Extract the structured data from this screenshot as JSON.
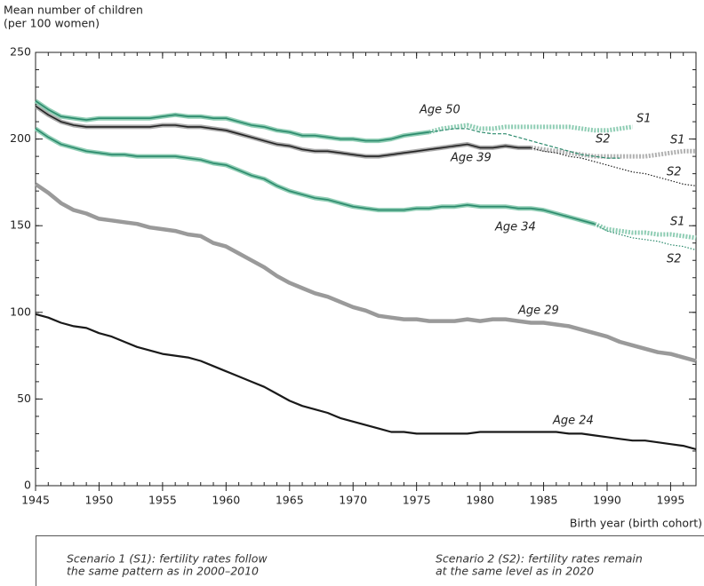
{
  "chart_data": {
    "type": "line",
    "y_label": [
      "Mean number of children",
      "(per 100 women)"
    ],
    "x_label": "Birth year (birth cohort)",
    "xlim": [
      1945,
      1997
    ],
    "xticks": [
      1945,
      1950,
      1955,
      1960,
      1965,
      1970,
      1975,
      1980,
      1985,
      1990,
      1995
    ],
    "ylim": [
      0,
      250
    ],
    "yticks": [
      0,
      50,
      100,
      150,
      200,
      250
    ],
    "x": [
      1945,
      1946,
      1947,
      1948,
      1949,
      1950,
      1951,
      1952,
      1953,
      1954,
      1955,
      1956,
      1957,
      1958,
      1959,
      1960,
      1961,
      1962,
      1963,
      1964,
      1965,
      1966,
      1967,
      1968,
      1969,
      1970,
      1971,
      1972,
      1973,
      1974,
      1975,
      1976,
      1977,
      1978,
      1979,
      1980,
      1981,
      1982,
      1983,
      1984,
      1985,
      1986,
      1987,
      1988,
      1989,
      1990,
      1991,
      1992,
      1993,
      1994,
      1995,
      1996,
      1997
    ],
    "series": [
      {
        "name": "Age 50",
        "color": "#2b8a6c",
        "shade_color": "#8fcdb4",
        "values": [
          222,
          217,
          213,
          212,
          211,
          212,
          212,
          212,
          212,
          212,
          213,
          214,
          213,
          213,
          212,
          212,
          210,
          208,
          207,
          205,
          204,
          202,
          202,
          201,
          200,
          200,
          199,
          199,
          200,
          202,
          203,
          204,
          null,
          null,
          null,
          null,
          null,
          null,
          null,
          null,
          null,
          null,
          null,
          null,
          null,
          null,
          null,
          null,
          null,
          null,
          null,
          null,
          null
        ],
        "projections": [
          {
            "name": "S1",
            "color": "#8fcdb4",
            "values": [
              null,
              null,
              null,
              null,
              null,
              null,
              null,
              null,
              null,
              null,
              null,
              null,
              null,
              null,
              null,
              null,
              null,
              null,
              null,
              null,
              null,
              null,
              null,
              null,
              null,
              null,
              null,
              null,
              null,
              null,
              null,
              204,
              206,
              207,
              208,
              206,
              206,
              207,
              207,
              207,
              207,
              207,
              207,
              206,
              205,
              205,
              206,
              207,
              null,
              null,
              null,
              null,
              null
            ]
          },
          {
            "name": "S2",
            "color": "#2b8a6c",
            "values": [
              null,
              null,
              null,
              null,
              null,
              null,
              null,
              null,
              null,
              null,
              null,
              null,
              null,
              null,
              null,
              null,
              null,
              null,
              null,
              null,
              null,
              null,
              null,
              null,
              null,
              null,
              null,
              null,
              null,
              null,
              null,
              204,
              205,
              206,
              206,
              204,
              203,
              203,
              201,
              199,
              197,
              195,
              193,
              191,
              190,
              189,
              189,
              null,
              null,
              null,
              null,
              null,
              null
            ]
          }
        ]
      },
      {
        "name": "Age 39",
        "color": "#222222",
        "shade_color": "#aaaaaa",
        "values": [
          219,
          214,
          210,
          208,
          207,
          207,
          207,
          207,
          207,
          207,
          208,
          208,
          207,
          207,
          206,
          205,
          203,
          201,
          199,
          197,
          196,
          194,
          193,
          193,
          192,
          191,
          190,
          190,
          191,
          192,
          193,
          194,
          195,
          196,
          197,
          195,
          195,
          196,
          195,
          195,
          null,
          null,
          null,
          null,
          null,
          null,
          null,
          null,
          null,
          null,
          null,
          null,
          null
        ],
        "projections": [
          {
            "name": "S1",
            "color": "#b0b0b0",
            "values": [
              null,
              null,
              null,
              null,
              null,
              null,
              null,
              null,
              null,
              null,
              null,
              null,
              null,
              null,
              null,
              null,
              null,
              null,
              null,
              null,
              null,
              null,
              null,
              null,
              null,
              null,
              null,
              null,
              null,
              null,
              null,
              null,
              null,
              null,
              null,
              null,
              null,
              null,
              null,
              195,
              194,
              193,
              192,
              191,
              190,
              190,
              190,
              190,
              190,
              191,
              192,
              193,
              193
            ]
          },
          {
            "name": "S2",
            "color": "#222222",
            "values": [
              null,
              null,
              null,
              null,
              null,
              null,
              null,
              null,
              null,
              null,
              null,
              null,
              null,
              null,
              null,
              null,
              null,
              null,
              null,
              null,
              null,
              null,
              null,
              null,
              null,
              null,
              null,
              null,
              null,
              null,
              null,
              null,
              null,
              null,
              null,
              null,
              null,
              null,
              null,
              195,
              193,
              192,
              190,
              189,
              187,
              185,
              183,
              181,
              180,
              178,
              176,
              174,
              173
            ]
          }
        ]
      },
      {
        "name": "Age 34",
        "color": "#2b8a6c",
        "shade_color": "#8fcdb4",
        "values": [
          206,
          201,
          197,
          195,
          193,
          192,
          191,
          191,
          190,
          190,
          190,
          190,
          189,
          188,
          186,
          185,
          182,
          179,
          177,
          173,
          170,
          168,
          166,
          165,
          163,
          161,
          160,
          159,
          159,
          159,
          160,
          160,
          161,
          161,
          162,
          161,
          161,
          161,
          160,
          160,
          159,
          157,
          155,
          153,
          151,
          null,
          null,
          null,
          null,
          null,
          null,
          null,
          null
        ],
        "projections": [
          {
            "name": "S1",
            "color": "#8fcdb4",
            "values": [
              null,
              null,
              null,
              null,
              null,
              null,
              null,
              null,
              null,
              null,
              null,
              null,
              null,
              null,
              null,
              null,
              null,
              null,
              null,
              null,
              null,
              null,
              null,
              null,
              null,
              null,
              null,
              null,
              null,
              null,
              null,
              null,
              null,
              null,
              null,
              null,
              null,
              null,
              null,
              null,
              null,
              null,
              null,
              null,
              151,
              148,
              147,
              146,
              146,
              145,
              145,
              144,
              143
            ]
          },
          {
            "name": "S2",
            "color": "#2b8a6c",
            "values": [
              null,
              null,
              null,
              null,
              null,
              null,
              null,
              null,
              null,
              null,
              null,
              null,
              null,
              null,
              null,
              null,
              null,
              null,
              null,
              null,
              null,
              null,
              null,
              null,
              null,
              null,
              null,
              null,
              null,
              null,
              null,
              null,
              null,
              null,
              null,
              null,
              null,
              null,
              null,
              null,
              null,
              null,
              null,
              null,
              151,
              147,
              145,
              143,
              142,
              141,
              139,
              138,
              136
            ]
          }
        ]
      },
      {
        "name": "Age 29",
        "color": "#9a9a9a",
        "values": [
          174,
          169,
          163,
          159,
          157,
          154,
          153,
          152,
          151,
          149,
          148,
          147,
          145,
          144,
          140,
          138,
          134,
          130,
          126,
          121,
          117,
          114,
          111,
          109,
          106,
          103,
          101,
          98,
          97,
          96,
          96,
          95,
          95,
          95,
          96,
          95,
          96,
          96,
          95,
          94,
          94,
          93,
          92,
          90,
          88,
          86,
          83,
          81,
          79,
          77,
          76,
          74,
          72
        ]
      },
      {
        "name": "Age 24",
        "color": "#1a1a1a",
        "values": [
          99,
          97,
          94,
          92,
          91,
          88,
          86,
          83,
          80,
          78,
          76,
          75,
          74,
          72,
          69,
          66,
          63,
          60,
          57,
          53,
          49,
          46,
          44,
          42,
          39,
          37,
          35,
          33,
          31,
          31,
          30,
          30,
          30,
          30,
          30,
          31,
          31,
          31,
          31,
          31,
          31,
          31,
          30,
          30,
          29,
          28,
          27,
          26,
          26,
          25,
          24,
          23,
          21
        ]
      }
    ],
    "notes": [
      [
        "Scenario 1 (S1): fertility rates follow",
        "the same pattern as in 2000–2010"
      ],
      [
        "Scenario 2 (S2): fertility rates remain",
        "at the same level as in 2020"
      ]
    ]
  }
}
